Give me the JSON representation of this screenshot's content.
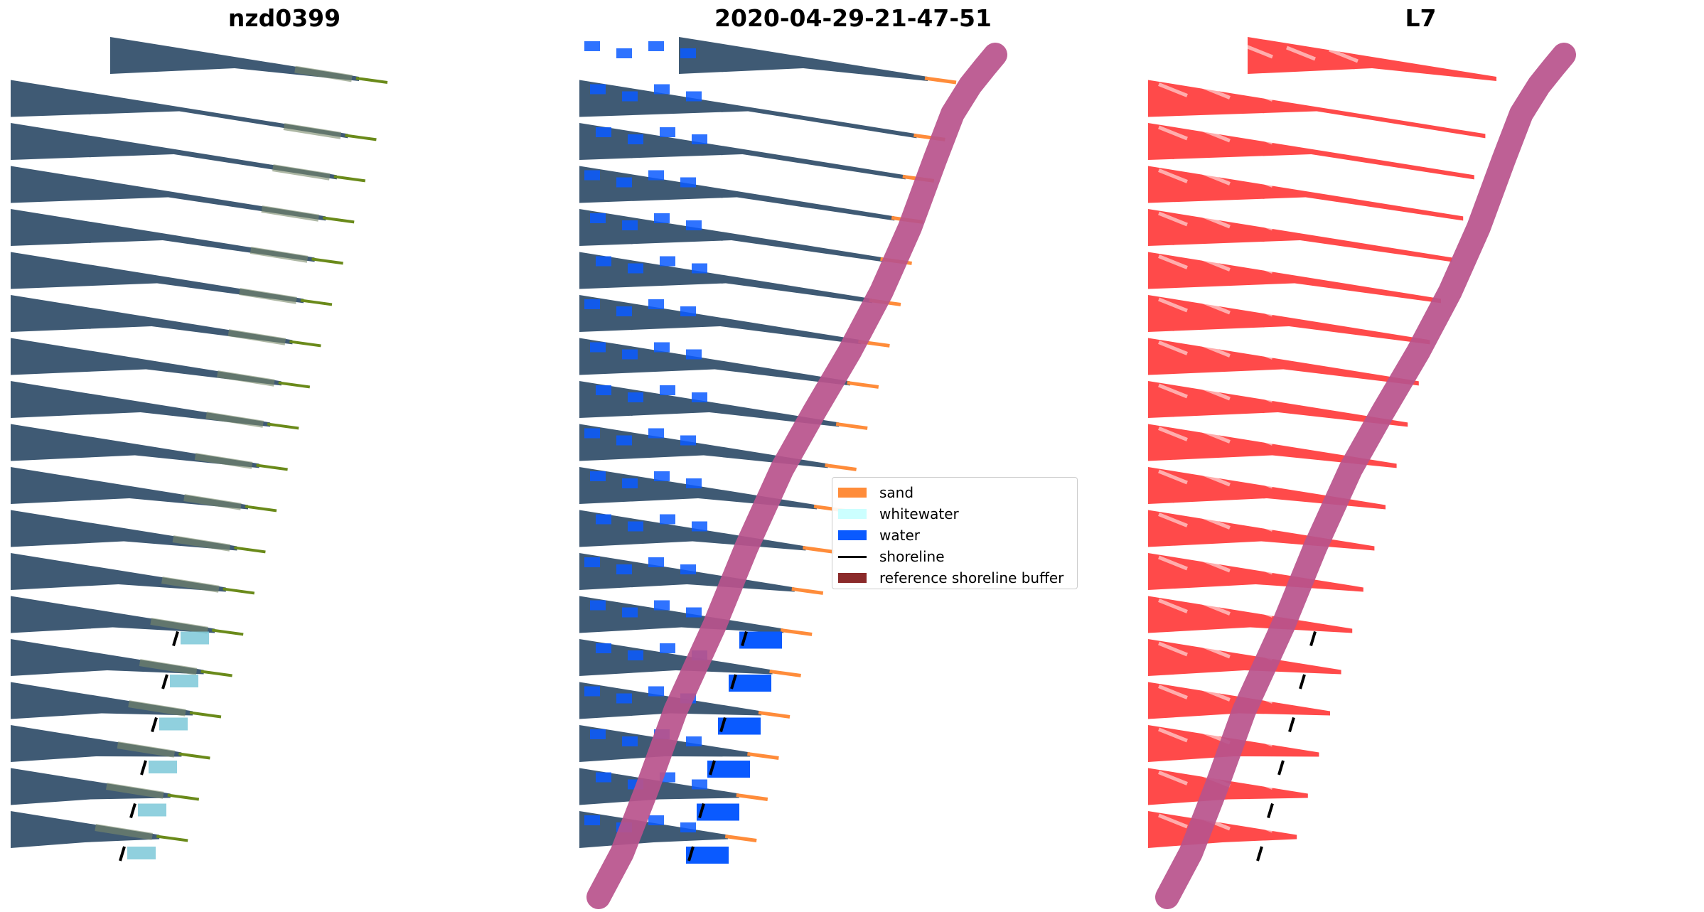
{
  "panels": {
    "left": {
      "title": "nzd0399"
    },
    "middle": {
      "title": "2020-04-29-21-47-51"
    },
    "right": {
      "title": "L7"
    }
  },
  "legend": {
    "items": [
      {
        "label": "sand",
        "color": "#ff8c3a",
        "kind": "patch"
      },
      {
        "label": "whitewater",
        "color": "#ccffff",
        "kind": "patch"
      },
      {
        "label": "water",
        "color": "#0a5aff",
        "kind": "patch"
      },
      {
        "label": "shoreline",
        "color": "#000000",
        "kind": "line"
      },
      {
        "label": "reference shoreline buffer",
        "color": "#8b2a2a",
        "kind": "patch"
      }
    ]
  },
  "colors": {
    "strip_rgb": "#3f5a74",
    "strip_l7": "#ff2a2a",
    "buffer": "#b8528c",
    "tip": "#6a8a1a"
  }
}
